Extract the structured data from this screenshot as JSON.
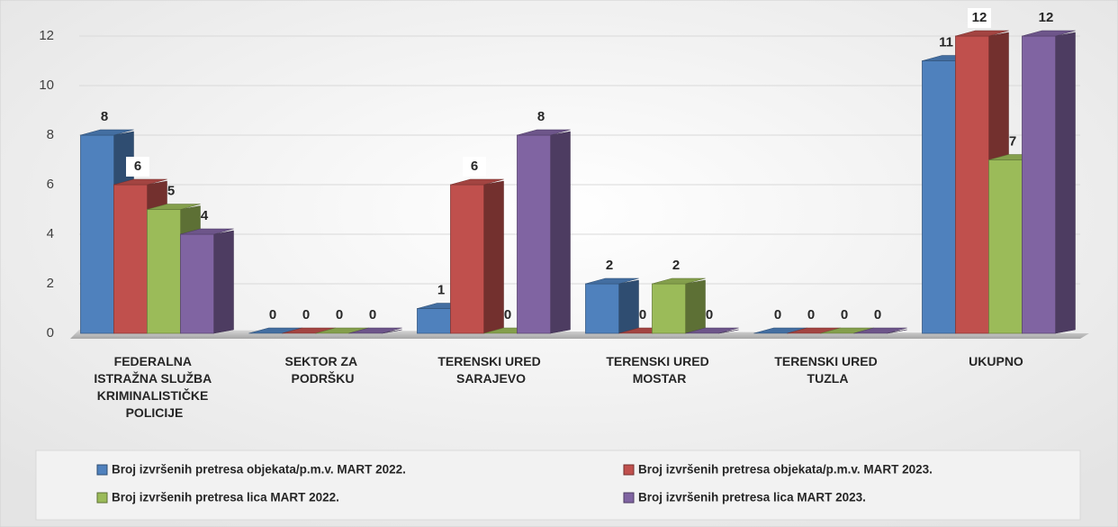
{
  "chart_data": {
    "type": "bar3d",
    "categories": [
      "FEDERALNA ISTRAŽNA SLUŽBA KRIMINALISTIČKE POLICIJE",
      "SEKTOR ZA PODRŠKU",
      "TERENSKI URED SARAJEVO",
      "TERENSKI URED MOSTAR",
      "TERENSKI URED TUZLA",
      "UKUPNO"
    ],
    "series": [
      {
        "name": "Broj izvršenih pretresa objekata/p.m.v. MART 2022.",
        "color": "#4f81bd",
        "values": [
          8,
          0,
          1,
          2,
          0,
          11
        ]
      },
      {
        "name": "Broj izvršenih pretresa objekata/p.m.v. MART  2023.",
        "color": "#c0504d",
        "values": [
          6,
          0,
          6,
          0,
          0,
          12
        ]
      },
      {
        "name": "Broj izvršenih pretresa lica MART 2022.",
        "color": "#9bbb59",
        "values": [
          5,
          0,
          0,
          2,
          0,
          7
        ]
      },
      {
        "name": "Broj izvršenih pretresa lica MART  2023.",
        "color": "#8064a2",
        "values": [
          4,
          0,
          8,
          0,
          0,
          12
        ]
      }
    ],
    "ylim": [
      0,
      12
    ],
    "yticks": [
      0,
      2,
      4,
      6,
      8,
      10,
      12
    ],
    "grid": true
  }
}
